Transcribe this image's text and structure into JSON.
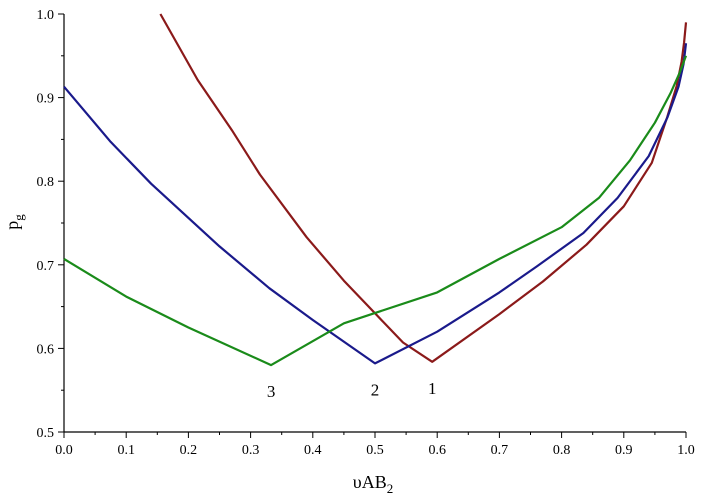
{
  "chart_data": {
    "type": "line",
    "title": "",
    "xlabel": {
      "main": "υAB",
      "sub": "2"
    },
    "ylabel": {
      "main": "p",
      "sub": "g"
    },
    "xlim": [
      0.0,
      1.0
    ],
    "ylim": [
      0.5,
      1.0
    ],
    "x_ticks": [
      0.0,
      0.1,
      0.2,
      0.3,
      0.4,
      0.5,
      0.6,
      0.7,
      0.8,
      0.9,
      1.0
    ],
    "x_tick_labels": [
      "0.0",
      "0.1",
      "0.2",
      "0.3",
      "0.4",
      "0.5",
      "0.6",
      "0.7",
      "0.8",
      "0.9",
      "1.0"
    ],
    "y_ticks": [
      0.5,
      0.6,
      0.7,
      0.8,
      0.9,
      1.0
    ],
    "y_tick_labels": [
      "0.5",
      "0.6",
      "0.7",
      "0.8",
      "0.9",
      "1.0"
    ],
    "grid": false,
    "series": [
      {
        "label": "1",
        "color": "#8b1a1a",
        "x": [
          0.155,
          0.215,
          0.27,
          0.315,
          0.39,
          0.45,
          0.5,
          0.545,
          0.592,
          0.7,
          0.77,
          0.84,
          0.9,
          0.945,
          0.97,
          0.985,
          0.993,
          0.997,
          1.0
        ],
        "y": [
          1.0,
          0.921,
          0.861,
          0.808,
          0.733,
          0.681,
          0.642,
          0.607,
          0.584,
          0.641,
          0.68,
          0.724,
          0.77,
          0.822,
          0.877,
          0.914,
          0.943,
          0.966,
          0.99
        ]
      },
      {
        "label": "2",
        "color": "#1a1a8b",
        "x": [
          0.0,
          0.075,
          0.14,
          0.25,
          0.33,
          0.4,
          0.5,
          0.6,
          0.7,
          0.76,
          0.835,
          0.89,
          0.94,
          0.97,
          0.988,
          0.996,
          1.0
        ],
        "y": [
          0.913,
          0.847,
          0.797,
          0.722,
          0.672,
          0.634,
          0.582,
          0.62,
          0.667,
          0.698,
          0.738,
          0.78,
          0.83,
          0.876,
          0.913,
          0.94,
          0.965
        ]
      },
      {
        "label": "3",
        "color": "#1a8b1a",
        "x": [
          0.0,
          0.1,
          0.2,
          0.333,
          0.45,
          0.6,
          0.7,
          0.8,
          0.86,
          0.91,
          0.95,
          0.975,
          0.99,
          1.0
        ],
        "y": [
          0.707,
          0.662,
          0.625,
          0.58,
          0.63,
          0.667,
          0.707,
          0.745,
          0.78,
          0.825,
          0.87,
          0.905,
          0.93,
          0.95
        ]
      }
    ],
    "curve_label_anchors": [
      {
        "text": "1",
        "x": 0.592,
        "y": 0.584
      },
      {
        "text": "2",
        "x": 0.5,
        "y": 0.582
      },
      {
        "text": "3",
        "x": 0.333,
        "y": 0.58
      }
    ]
  }
}
